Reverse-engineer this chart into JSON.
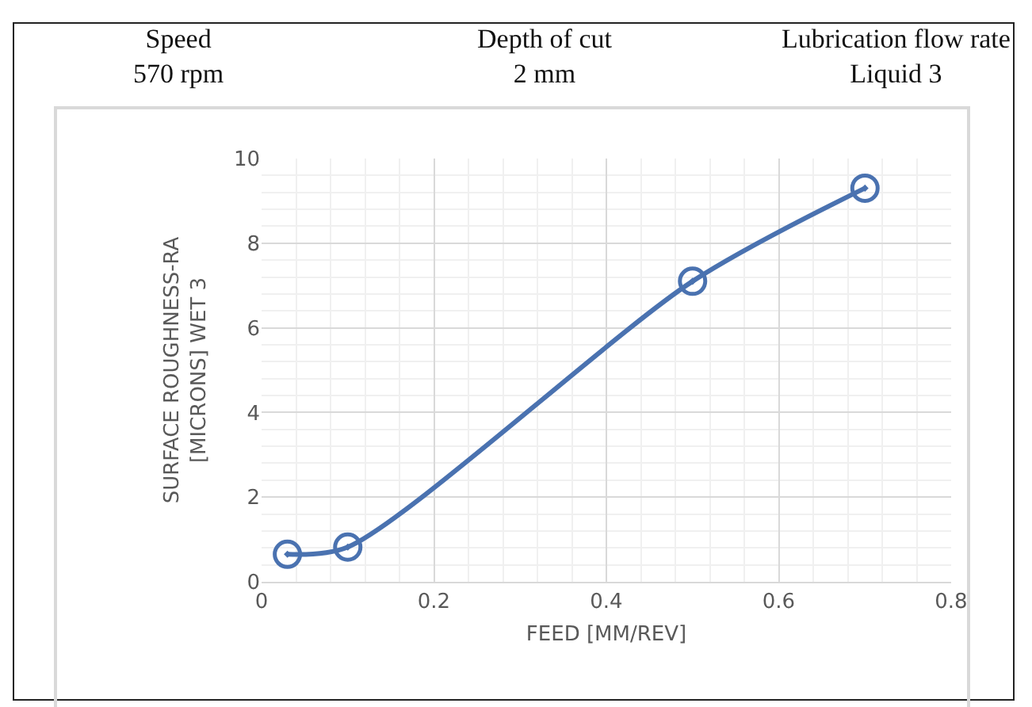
{
  "chart_data": {
    "type": "line",
    "annotations": [
      "Speed\n570 rpm",
      "Depth of cut\n2 mm",
      "Lubrication flow rate\nLiquid 3"
    ],
    "xlabel": "FEED [MM/REV]",
    "ylabel": "SURFACE ROUGHNESS-RA\n[MICRONS] WET 3",
    "x": [
      0.03,
      0.1,
      0.5,
      0.7
    ],
    "series": [
      {
        "color": "#4a72b0",
        "values": [
          0.65,
          0.82,
          7.1,
          9.3
        ]
      }
    ],
    "xlim": [
      0,
      0.8
    ],
    "xticks": [
      0,
      0.2,
      0.4,
      0.6,
      0.8
    ],
    "ylim": [
      0,
      10
    ],
    "yticks": [
      0,
      2,
      4,
      6,
      8,
      10
    ],
    "grid": true,
    "marker": "circle",
    "line_style": "solid"
  }
}
